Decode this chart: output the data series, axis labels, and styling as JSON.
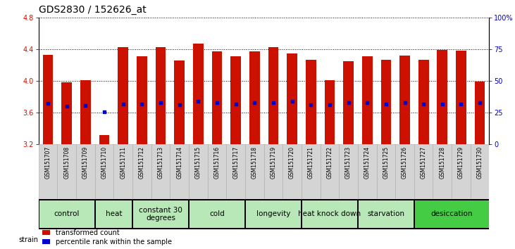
{
  "title": "GDS2830 / 152626_at",
  "samples": [
    "GSM151707",
    "GSM151708",
    "GSM151709",
    "GSM151710",
    "GSM151711",
    "GSM151712",
    "GSM151713",
    "GSM151714",
    "GSM151715",
    "GSM151716",
    "GSM151717",
    "GSM151718",
    "GSM151719",
    "GSM151720",
    "GSM151721",
    "GSM151722",
    "GSM151723",
    "GSM151724",
    "GSM151725",
    "GSM151726",
    "GSM151727",
    "GSM151728",
    "GSM151729",
    "GSM151730"
  ],
  "bar_heights": [
    4.33,
    3.98,
    4.01,
    3.32,
    4.43,
    4.31,
    4.43,
    4.26,
    4.47,
    4.37,
    4.31,
    4.37,
    4.43,
    4.35,
    4.27,
    4.01,
    4.25,
    4.31,
    4.27,
    4.32,
    4.27,
    4.39,
    4.38,
    3.99
  ],
  "blue_dot_values": [
    3.72,
    3.68,
    3.69,
    3.61,
    3.71,
    3.71,
    3.73,
    3.7,
    3.74,
    3.73,
    3.71,
    3.73,
    3.73,
    3.74,
    3.7,
    3.7,
    3.73,
    3.73,
    3.71,
    3.73,
    3.71,
    3.71,
    3.71,
    3.73
  ],
  "ylim_left": [
    3.2,
    4.8
  ],
  "yticks_left": [
    3.2,
    3.6,
    4.0,
    4.4,
    4.8
  ],
  "ylim_right": [
    0,
    100
  ],
  "yticks_right": [
    0,
    25,
    50,
    75,
    100
  ],
  "ytick_labels_right": [
    "0",
    "25",
    "50",
    "75",
    "100%"
  ],
  "bar_color": "#cc1100",
  "dot_color": "#0000cc",
  "bar_width": 0.55,
  "groups": [
    {
      "label": "control",
      "start": 0,
      "end": 3
    },
    {
      "label": "heat",
      "start": 3,
      "end": 5
    },
    {
      "label": "constant 30\ndegrees",
      "start": 5,
      "end": 8
    },
    {
      "label": "cold",
      "start": 8,
      "end": 11
    },
    {
      "label": "longevity",
      "start": 11,
      "end": 14
    },
    {
      "label": "heat knock down",
      "start": 14,
      "end": 17
    },
    {
      "label": "starvation",
      "start": 17,
      "end": 20
    },
    {
      "label": "desiccation",
      "start": 20,
      "end": 24
    }
  ],
  "group_colors": [
    "#b8e8b8",
    "#b8e8b8",
    "#b8e8b8",
    "#b8e8b8",
    "#b8e8b8",
    "#b8e8b8",
    "#b8e8b8",
    "#44cc44"
  ],
  "legend_bar_label": "transformed count",
  "legend_dot_label": "percentile rank within the sample",
  "tick_label_color_left": "#cc1100",
  "tick_label_color_right": "#0000cc",
  "xlabel_strain": "strain",
  "background_color": "#ffffff",
  "title_fontsize": 10,
  "tick_fontsize": 7,
  "group_fontsize": 7.5,
  "sample_fontsize": 5.5
}
